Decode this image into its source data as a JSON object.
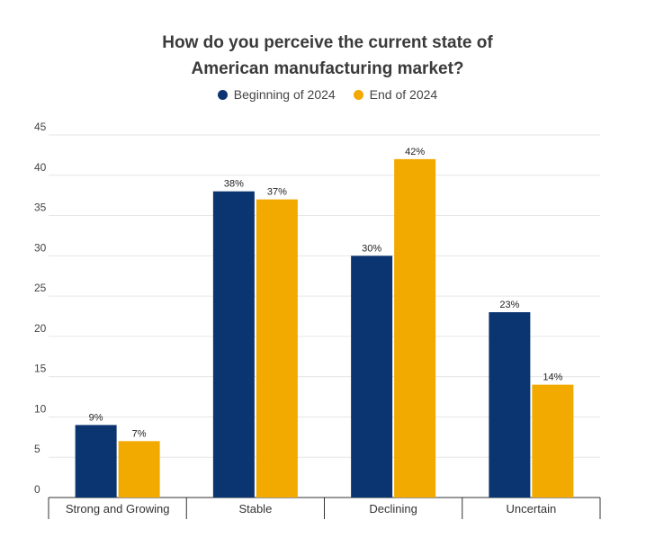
{
  "chart_data": {
    "type": "bar",
    "title_lines": [
      "How do you perceive the current state of",
      "American manufacturing market?"
    ],
    "categories": [
      "Strong and Growing",
      "Stable",
      "Declining",
      "Uncertain"
    ],
    "series": [
      {
        "name": "Beginning of 2024",
        "color": "#0b3571",
        "values": [
          9,
          38,
          30,
          23
        ],
        "labels": [
          "9%",
          "38%",
          "30%",
          "23%"
        ]
      },
      {
        "name": "End of 2024",
        "color": "#f2a900",
        "values": [
          7,
          37,
          42,
          14
        ],
        "labels": [
          "7%",
          "37%",
          "42%",
          "14%"
        ]
      }
    ],
    "ylim": [
      0,
      45
    ],
    "yticks": [
      0,
      5,
      10,
      15,
      20,
      25,
      30,
      35,
      40,
      45
    ],
    "xlabel": "",
    "ylabel": "",
    "grid": true,
    "legend_position": "top-center"
  }
}
